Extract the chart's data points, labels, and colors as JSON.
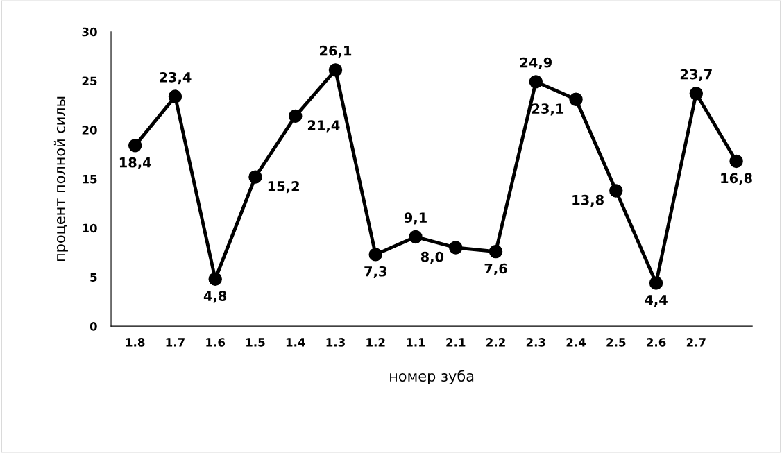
{
  "chart_data": {
    "type": "line",
    "xlabel": "номер зуба",
    "ylabel": "процент полной силы",
    "categories": [
      "1.8",
      "1.7",
      "1.6",
      "1.5",
      "1.4",
      "1.3",
      "1.2",
      "1.1",
      "2.1",
      "2.2",
      "2.3",
      "2.4",
      "2.5",
      "2.6",
      "2.7",
      null
    ],
    "series": [
      {
        "color": "#000000",
        "values": [
          18.4,
          23.4,
          4.8,
          15.2,
          21.4,
          26.1,
          7.3,
          9.1,
          8.0,
          7.6,
          24.9,
          23.1,
          13.8,
          4.4,
          23.7,
          16.8
        ],
        "value_labels": [
          "18,4",
          "23,4",
          "4,8",
          "15,2",
          "21,4",
          "26,1",
          "7,3",
          "9,1",
          "8,0",
          "7,6",
          "24,9",
          "23,1",
          "13,8",
          "4,4",
          "23,7",
          "16,8"
        ]
      }
    ],
    "ylim": [
      0,
      30
    ],
    "yticks": [
      0,
      5,
      10,
      15,
      20,
      25,
      30
    ],
    "grid": false,
    "legend": false,
    "marker": "circle",
    "line_style": "solid"
  }
}
